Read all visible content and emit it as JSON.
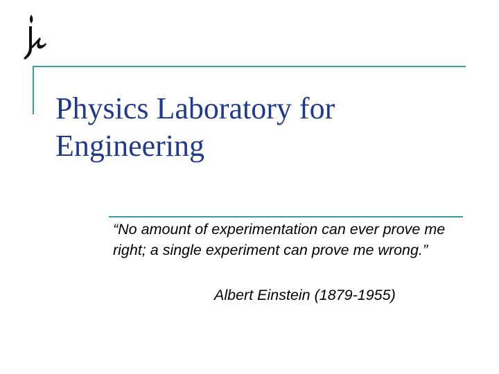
{
  "slide": {
    "logo_icon": "calligraphic-logo-icon",
    "title": "Physics Laboratory for Engineering",
    "quote": "“No amount of experimentation can ever prove me right; a single experiment can prove me wrong.”",
    "attribution": "Albert Einstein (1879-1955)",
    "accent_color": "#3a9a9a",
    "title_color": "#1f3a8c"
  }
}
